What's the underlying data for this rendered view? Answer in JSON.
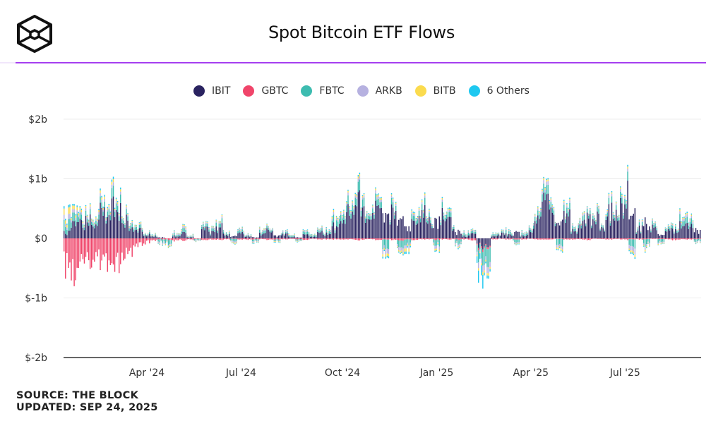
{
  "header": {
    "title": "Spot Bitcoin ETF Flows",
    "logo_icon": "the-block-cube-logo-icon",
    "accent_color": "#a53ff0"
  },
  "footer": {
    "source": "SOURCE: THE BLOCK",
    "updated": "UPDATED: SEP 24, 2025"
  },
  "chart_data": {
    "type": "bar",
    "stacked": true,
    "title": "Spot Bitcoin ETF Flows",
    "xlabel": "",
    "ylabel": "",
    "unit": "USD billions",
    "ylim": [
      -2,
      2
    ],
    "yticks": [
      {
        "value": 2,
        "label": "$2b"
      },
      {
        "value": 1,
        "label": "$1b"
      },
      {
        "value": 0,
        "label": "$0"
      },
      {
        "value": -1,
        "label": "$-1b"
      },
      {
        "value": -2,
        "label": "$-2b"
      }
    ],
    "xticks": [
      {
        "label": "Apr '24",
        "index": 11
      },
      {
        "label": "Jul '24",
        "index": 24
      },
      {
        "label": "Oct '24",
        "index": 38
      },
      {
        "label": "Jan '25",
        "index": 51
      },
      {
        "label": "Apr '25",
        "index": 64
      },
      {
        "label": "Jul '25",
        "index": 77
      }
    ],
    "grid": true,
    "legend_position": "top-center",
    "granularity": "approx. weekly peak daily flows (estimated from plot)",
    "series": [
      {
        "name": "IBIT",
        "color": "#2a2360",
        "values": [
          0.12,
          0.3,
          0.4,
          0.45,
          0.3,
          0.55,
          0.7,
          0.62,
          0.5,
          0.3,
          0.2,
          0.08,
          0.05,
          0.02,
          0.0,
          0.05,
          0.1,
          0.03,
          0.0,
          0.2,
          0.12,
          0.25,
          0.08,
          0.05,
          0.1,
          0.05,
          0.02,
          0.12,
          0.18,
          0.05,
          0.1,
          0.03,
          0.02,
          0.08,
          0.04,
          0.12,
          0.1,
          0.25,
          0.45,
          0.6,
          0.9,
          0.7,
          0.55,
          0.62,
          0.4,
          0.55,
          0.35,
          0.2,
          0.3,
          0.55,
          0.4,
          0.35,
          0.5,
          0.35,
          0.15,
          0.05,
          0.1,
          -0.2,
          -0.15,
          0.05,
          0.1,
          0.08,
          0.12,
          0.05,
          0.15,
          0.55,
          0.75,
          0.55,
          0.3,
          0.45,
          0.15,
          0.3,
          0.4,
          0.45,
          0.3,
          0.55,
          0.75,
          0.95,
          0.5,
          0.2,
          0.35,
          0.22,
          0.1,
          0.18,
          0.15,
          0.3,
          0.25,
          0.2
        ]
      },
      {
        "name": "GBTC",
        "color": "#f0456a",
        "values": [
          -0.55,
          -0.62,
          -0.5,
          -0.4,
          -0.35,
          -0.45,
          -0.6,
          -0.55,
          -0.3,
          -0.25,
          -0.15,
          -0.08,
          -0.05,
          -0.02,
          -0.03,
          -0.05,
          -0.04,
          -0.03,
          -0.02,
          -0.03,
          -0.02,
          -0.03,
          -0.02,
          -0.01,
          -0.02,
          -0.03,
          -0.02,
          -0.02,
          -0.03,
          -0.02,
          -0.02,
          -0.01,
          -0.02,
          -0.03,
          -0.01,
          -0.02,
          -0.02,
          -0.02,
          -0.03,
          -0.02,
          -0.04,
          -0.03,
          -0.02,
          -0.03,
          -0.02,
          -0.03,
          -0.04,
          -0.02,
          -0.03,
          -0.02,
          -0.02,
          -0.03,
          -0.02,
          -0.02,
          -0.03,
          -0.02,
          -0.04,
          -0.05,
          -0.03,
          -0.02,
          -0.01,
          -0.02,
          -0.02,
          -0.02,
          -0.01,
          -0.03,
          -0.02,
          -0.02,
          -0.01,
          -0.02,
          -0.02,
          -0.02,
          -0.03,
          -0.01,
          -0.02,
          -0.02,
          -0.02,
          -0.03,
          -0.02,
          -0.02,
          -0.02,
          -0.01,
          -0.02,
          -0.02,
          -0.03,
          -0.02,
          -0.02,
          -0.02
        ]
      },
      {
        "name": "FBTC",
        "color": "#3dbcb0",
        "values": [
          0.18,
          0.15,
          0.12,
          0.1,
          0.08,
          0.1,
          0.18,
          0.15,
          0.12,
          0.1,
          0.06,
          0.03,
          0.02,
          -0.05,
          -0.08,
          0.04,
          0.06,
          0.02,
          -0.03,
          0.05,
          0.04,
          0.08,
          0.03,
          -0.05,
          0.04,
          0.02,
          -0.03,
          0.06,
          0.04,
          -0.02,
          0.03,
          0.02,
          -0.02,
          0.05,
          0.03,
          0.04,
          0.05,
          0.12,
          0.15,
          0.15,
          0.2,
          0.18,
          0.1,
          0.12,
          -0.15,
          0.1,
          -0.12,
          -0.1,
          0.08,
          0.12,
          0.08,
          -0.1,
          0.1,
          0.08,
          -0.08,
          0.05,
          0.04,
          -0.25,
          -0.3,
          0.03,
          0.02,
          0.05,
          -0.05,
          0.04,
          0.05,
          0.12,
          0.15,
          0.1,
          -0.12,
          0.1,
          0.05,
          0.08,
          0.06,
          0.08,
          0.05,
          0.1,
          0.12,
          0.15,
          -0.15,
          0.05,
          -0.12,
          0.06,
          -0.08,
          0.05,
          0.04,
          0.12,
          0.1,
          -0.05
        ]
      },
      {
        "name": "ARKB",
        "color": "#b6b1e0",
        "values": [
          0.08,
          0.06,
          0.05,
          0.05,
          0.04,
          0.05,
          0.06,
          0.05,
          0.04,
          0.04,
          0.02,
          0.01,
          0.01,
          -0.03,
          -0.02,
          0.02,
          0.03,
          0.01,
          -0.02,
          0.02,
          0.02,
          0.03,
          0.01,
          -0.03,
          0.02,
          0.01,
          -0.02,
          0.03,
          0.02,
          -0.01,
          0.02,
          0.01,
          -0.01,
          0.02,
          0.01,
          0.02,
          0.02,
          0.04,
          0.05,
          0.05,
          0.06,
          0.05,
          0.04,
          0.05,
          -0.08,
          0.04,
          -0.06,
          -0.05,
          0.03,
          0.04,
          0.03,
          -0.05,
          0.04,
          0.03,
          -0.04,
          0.02,
          0.02,
          -0.12,
          -0.1,
          0.01,
          0.01,
          0.02,
          -0.02,
          0.02,
          0.02,
          0.05,
          0.06,
          0.04,
          -0.05,
          0.04,
          0.02,
          0.03,
          0.02,
          0.03,
          0.02,
          0.04,
          0.05,
          0.05,
          -0.1,
          0.02,
          -0.05,
          0.02,
          -0.03,
          0.02,
          0.02,
          0.05,
          0.04,
          -0.02
        ]
      },
      {
        "name": "BITB",
        "color": "#fbdb4e",
        "values": [
          0.1,
          0.06,
          0.05,
          0.04,
          0.03,
          0.04,
          0.05,
          0.04,
          0.03,
          0.03,
          0.02,
          0.01,
          0.01,
          -0.01,
          -0.02,
          0.01,
          0.02,
          0.01,
          -0.01,
          0.01,
          0.01,
          0.02,
          0.01,
          -0.02,
          0.01,
          0.01,
          -0.01,
          0.02,
          0.01,
          -0.01,
          0.01,
          0.01,
          -0.01,
          0.01,
          0.01,
          0.01,
          0.01,
          0.03,
          0.03,
          0.03,
          0.04,
          0.03,
          0.02,
          0.03,
          -0.04,
          0.02,
          -0.03,
          -0.05,
          0.02,
          0.03,
          0.02,
          -0.03,
          0.02,
          0.02,
          -0.02,
          0.01,
          0.01,
          -0.05,
          -0.04,
          0.01,
          0.01,
          0.01,
          -0.01,
          0.01,
          0.01,
          0.03,
          0.03,
          0.02,
          -0.03,
          0.02,
          0.01,
          0.02,
          0.01,
          0.02,
          0.01,
          0.02,
          0.03,
          0.03,
          -0.04,
          0.01,
          -0.03,
          0.01,
          -0.02,
          0.01,
          0.01,
          0.03,
          0.02,
          -0.01
        ]
      },
      {
        "name": "6 Others",
        "color": "#1ec8f0",
        "values": [
          0.04,
          0.03,
          0.03,
          0.02,
          0.02,
          0.03,
          0.04,
          0.03,
          0.02,
          0.02,
          0.01,
          0.01,
          0.01,
          -0.01,
          -0.01,
          0.01,
          0.01,
          0.01,
          -0.01,
          0.01,
          0.01,
          0.01,
          0.01,
          -0.01,
          0.01,
          0.01,
          -0.01,
          0.01,
          0.01,
          -0.01,
          0.01,
          0.01,
          -0.01,
          0.01,
          0.01,
          0.01,
          0.01,
          0.02,
          0.02,
          0.02,
          0.03,
          0.02,
          0.02,
          0.02,
          -0.03,
          0.02,
          -0.02,
          -0.04,
          0.02,
          0.02,
          0.02,
          -0.02,
          0.02,
          0.02,
          -0.02,
          0.01,
          0.01,
          -0.25,
          -0.05,
          0.01,
          0.01,
          0.01,
          -0.01,
          0.01,
          0.01,
          0.02,
          0.02,
          0.02,
          -0.02,
          0.02,
          0.01,
          0.01,
          0.01,
          0.01,
          0.01,
          0.02,
          0.02,
          0.03,
          -0.03,
          0.01,
          -0.02,
          0.01,
          -0.01,
          0.01,
          0.01,
          0.02,
          0.02,
          -0.01
        ]
      }
    ]
  }
}
